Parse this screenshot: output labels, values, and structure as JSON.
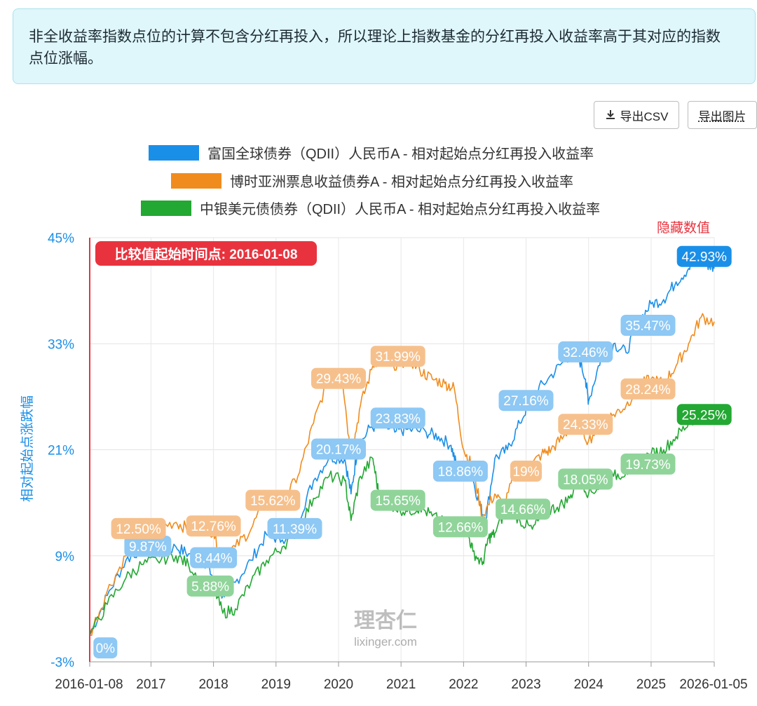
{
  "notice": {
    "line1": "非全收益率指数点位的计算不包含分红再投入，所以理论上指数基金的分红再投入收益率高于其对应的指数",
    "line2": "点位涨幅。"
  },
  "toolbar": {
    "export_csv_label": "导出CSV",
    "export_image_label": "导出图片",
    "download_icon": "download-icon"
  },
  "hide_values_label": "隐藏数值",
  "start_marker_label": "比较值起始时间点: 2016-01-08",
  "watermark": {
    "logo": "理杏仁",
    "url": "lixinger.com"
  },
  "colors": {
    "blue": "#1a8fe8",
    "orange": "#f08c1e",
    "green": "#23a833",
    "marker": "#e8333e"
  },
  "chart_data": {
    "type": "line",
    "title": "",
    "xlabel": "",
    "ylabel": "相对起始点涨跌幅",
    "ylim": [
      -3,
      45
    ],
    "yticks": [
      "45%",
      "33%",
      "21%",
      "9%",
      "-3%"
    ],
    "ytick_values": [
      45,
      33,
      21,
      9,
      -3
    ],
    "xlim": [
      2016.02,
      2026.01
    ],
    "xticks": [
      "2016-01-08",
      "2017",
      "2018",
      "2019",
      "2020",
      "2021",
      "2022",
      "2023",
      "2024",
      "2025",
      "2026-01-05"
    ],
    "xtick_values": [
      2016.02,
      2017.0,
      2018.0,
      2019.0,
      2020.0,
      2021.0,
      2022.0,
      2023.0,
      2024.0,
      2025.0,
      2026.01
    ],
    "series": [
      {
        "name": "富国全球债券（QDII）人民币A - 相对起始点分红再投入收益率",
        "color": "#1a8fe8",
        "points": [
          [
            2016.02,
            0
          ],
          [
            2016.3,
            4.5
          ],
          [
            2016.6,
            8.5
          ],
          [
            2016.85,
            9.87
          ],
          [
            2017.1,
            9.3
          ],
          [
            2017.4,
            10.0
          ],
          [
            2017.6,
            9.2
          ],
          [
            2017.85,
            8.44
          ],
          [
            2018.0,
            6.5
          ],
          [
            2018.15,
            4.5
          ],
          [
            2018.35,
            6.0
          ],
          [
            2018.6,
            8.5
          ],
          [
            2018.85,
            11.39
          ],
          [
            2019.1,
            10.8
          ],
          [
            2019.35,
            13.0
          ],
          [
            2019.6,
            17.5
          ],
          [
            2019.85,
            20.17
          ],
          [
            2020.1,
            20.0
          ],
          [
            2020.2,
            16.0
          ],
          [
            2020.3,
            21.0
          ],
          [
            2020.5,
            23.5
          ],
          [
            2020.7,
            23.83
          ],
          [
            2020.9,
            23.0
          ],
          [
            2021.1,
            23.3
          ],
          [
            2021.4,
            23.0
          ],
          [
            2021.6,
            22.5
          ],
          [
            2021.8,
            21.5
          ],
          [
            2021.9,
            18.86
          ],
          [
            2022.1,
            19.0
          ],
          [
            2022.25,
            15.0
          ],
          [
            2022.35,
            12.8
          ],
          [
            2022.5,
            20.0
          ],
          [
            2022.7,
            21.0
          ],
          [
            2022.9,
            24.0
          ],
          [
            2023.1,
            27.16
          ],
          [
            2023.35,
            29.0
          ],
          [
            2023.6,
            31.0
          ],
          [
            2023.8,
            32.46
          ],
          [
            2023.95,
            29.0
          ],
          [
            2024.0,
            26.5
          ],
          [
            2024.2,
            31.5
          ],
          [
            2024.4,
            33.0
          ],
          [
            2024.6,
            32.0
          ],
          [
            2024.8,
            35.47
          ],
          [
            2025.0,
            37.5
          ],
          [
            2025.2,
            38.0
          ],
          [
            2025.4,
            40.0
          ],
          [
            2025.6,
            41.5
          ],
          [
            2025.75,
            42.93
          ],
          [
            2025.9,
            42.0
          ],
          [
            2026.01,
            41.5
          ]
        ]
      },
      {
        "name": "博时亚洲票息收益债券A - 相对起始点分红再投入收益率",
        "color": "#f08c1e",
        "points": [
          [
            2016.02,
            0
          ],
          [
            2016.3,
            5.0
          ],
          [
            2016.6,
            9.0
          ],
          [
            2016.85,
            12.5
          ],
          [
            2017.1,
            12.2
          ],
          [
            2017.4,
            12.8
          ],
          [
            2017.6,
            12.0
          ],
          [
            2017.85,
            12.76
          ],
          [
            2018.0,
            11.5
          ],
          [
            2018.15,
            9.0
          ],
          [
            2018.35,
            10.0
          ],
          [
            2018.6,
            12.0
          ],
          [
            2018.85,
            15.62
          ],
          [
            2019.1,
            15.0
          ],
          [
            2019.35,
            18.0
          ],
          [
            2019.6,
            24.0
          ],
          [
            2019.85,
            29.43
          ],
          [
            2020.05,
            30.0
          ],
          [
            2020.2,
            20.0
          ],
          [
            2020.35,
            26.0
          ],
          [
            2020.55,
            30.5
          ],
          [
            2020.7,
            31.99
          ],
          [
            2020.9,
            30.0
          ],
          [
            2021.1,
            31.5
          ],
          [
            2021.3,
            30.0
          ],
          [
            2021.5,
            29.0
          ],
          [
            2021.7,
            28.5
          ],
          [
            2021.85,
            28.0
          ],
          [
            2022.0,
            21.0
          ],
          [
            2022.15,
            19.0
          ],
          [
            2022.3,
            13.5
          ],
          [
            2022.5,
            16.0
          ],
          [
            2022.65,
            14.5
          ],
          [
            2022.85,
            19.0
          ],
          [
            2023.05,
            19.0
          ],
          [
            2023.25,
            20.5
          ],
          [
            2023.4,
            21.0
          ],
          [
            2023.6,
            22.5
          ],
          [
            2023.8,
            24.33
          ],
          [
            2024.0,
            22.0
          ],
          [
            2024.2,
            24.0
          ],
          [
            2024.4,
            25.0
          ],
          [
            2024.6,
            26.0
          ],
          [
            2024.8,
            28.24
          ],
          [
            2025.0,
            29.0
          ],
          [
            2025.2,
            28.5
          ],
          [
            2025.4,
            30.5
          ],
          [
            2025.6,
            33.0
          ],
          [
            2025.8,
            36.0
          ],
          [
            2026.01,
            35.5
          ]
        ]
      },
      {
        "name": "中银美元债债券（QDII）人民币A - 相对起始点分红再投入收益率",
        "color": "#23a833",
        "points": [
          [
            2016.02,
            0
          ],
          [
            2016.3,
            3.5
          ],
          [
            2016.6,
            6.5
          ],
          [
            2016.85,
            8.0
          ],
          [
            2017.1,
            8.5
          ],
          [
            2017.4,
            9.0
          ],
          [
            2017.6,
            8.0
          ],
          [
            2017.85,
            5.88
          ],
          [
            2018.0,
            5.5
          ],
          [
            2018.15,
            2.5
          ],
          [
            2018.35,
            3.0
          ],
          [
            2018.6,
            6.0
          ],
          [
            2018.85,
            8.5
          ],
          [
            2019.1,
            10.0
          ],
          [
            2019.35,
            12.0
          ],
          [
            2019.6,
            15.5
          ],
          [
            2019.85,
            18.0
          ],
          [
            2020.1,
            17.5
          ],
          [
            2020.2,
            13.0
          ],
          [
            2020.35,
            18.0
          ],
          [
            2020.55,
            20.0
          ],
          [
            2020.65,
            15.65
          ],
          [
            2020.9,
            14.5
          ],
          [
            2021.1,
            14.0
          ],
          [
            2021.3,
            14.5
          ],
          [
            2021.5,
            13.5
          ],
          [
            2021.7,
            12.66
          ],
          [
            2021.9,
            12.8
          ],
          [
            2022.05,
            12.0
          ],
          [
            2022.15,
            9.5
          ],
          [
            2022.3,
            8.0
          ],
          [
            2022.4,
            11.0
          ],
          [
            2022.5,
            11.5
          ],
          [
            2022.7,
            14.66
          ],
          [
            2022.9,
            13.0
          ],
          [
            2023.1,
            12.0
          ],
          [
            2023.3,
            14.0
          ],
          [
            2023.5,
            14.5
          ],
          [
            2023.7,
            15.5
          ],
          [
            2023.85,
            18.05
          ],
          [
            2024.0,
            16.0
          ],
          [
            2024.2,
            17.0
          ],
          [
            2024.4,
            18.0
          ],
          [
            2024.6,
            18.5
          ],
          [
            2024.8,
            19.73
          ],
          [
            2025.0,
            20.5
          ],
          [
            2025.2,
            21.0
          ],
          [
            2025.4,
            22.5
          ],
          [
            2025.6,
            24.0
          ],
          [
            2025.8,
            25.25
          ],
          [
            2026.01,
            24.5
          ]
        ]
      }
    ],
    "data_labels": [
      {
        "series": 0,
        "x": 2016.27,
        "y": -1.5,
        "text": "0%"
      },
      {
        "series": 0,
        "x": 2016.95,
        "y": 10.0,
        "text": "9.87%"
      },
      {
        "series": 0,
        "x": 2018.0,
        "y": 8.7,
        "text": "8.44%"
      },
      {
        "series": 0,
        "x": 2019.3,
        "y": 12.0,
        "text": "11.39%"
      },
      {
        "series": 0,
        "x": 2020.0,
        "y": 21.0,
        "text": "20.17%"
      },
      {
        "series": 0,
        "x": 2020.95,
        "y": 24.5,
        "text": "23.83%"
      },
      {
        "series": 0,
        "x": 2021.95,
        "y": 18.5,
        "text": "18.86%"
      },
      {
        "series": 0,
        "x": 2023.0,
        "y": 26.5,
        "text": "27.16%"
      },
      {
        "series": 0,
        "x": 2023.95,
        "y": 32.0,
        "text": "32.46%"
      },
      {
        "series": 0,
        "x": 2024.95,
        "y": 35.0,
        "text": "35.47%"
      },
      {
        "series": 0,
        "x": 2025.85,
        "y": 42.8,
        "text": "42.93%"
      },
      {
        "series": 1,
        "x": 2016.8,
        "y": 12.0,
        "text": "12.50%"
      },
      {
        "series": 1,
        "x": 2018.0,
        "y": 12.3,
        "text": "12.76%"
      },
      {
        "series": 1,
        "x": 2018.95,
        "y": 15.2,
        "text": "15.62%"
      },
      {
        "series": 1,
        "x": 2020.0,
        "y": 29.0,
        "text": "29.43%"
      },
      {
        "series": 1,
        "x": 2020.95,
        "y": 31.5,
        "text": "31.99%"
      },
      {
        "series": 1,
        "x": 2023.0,
        "y": 18.5,
        "text": "19%"
      },
      {
        "series": 1,
        "x": 2023.95,
        "y": 23.8,
        "text": "24.33%"
      },
      {
        "series": 1,
        "x": 2024.95,
        "y": 27.8,
        "text": "28.24%"
      },
      {
        "series": 2,
        "x": 2017.95,
        "y": 5.5,
        "text": "5.88%"
      },
      {
        "series": 2,
        "x": 2020.95,
        "y": 15.2,
        "text": "15.65%"
      },
      {
        "series": 2,
        "x": 2021.95,
        "y": 12.2,
        "text": "12.66%"
      },
      {
        "series": 2,
        "x": 2022.95,
        "y": 14.2,
        "text": "14.66%"
      },
      {
        "series": 2,
        "x": 2023.95,
        "y": 17.6,
        "text": "18.05%"
      },
      {
        "series": 2,
        "x": 2024.95,
        "y": 19.3,
        "text": "19.73%"
      },
      {
        "series": 2,
        "x": 2025.85,
        "y": 24.9,
        "text": "25.25%"
      }
    ],
    "legend_position": "top-center",
    "grid": true
  }
}
